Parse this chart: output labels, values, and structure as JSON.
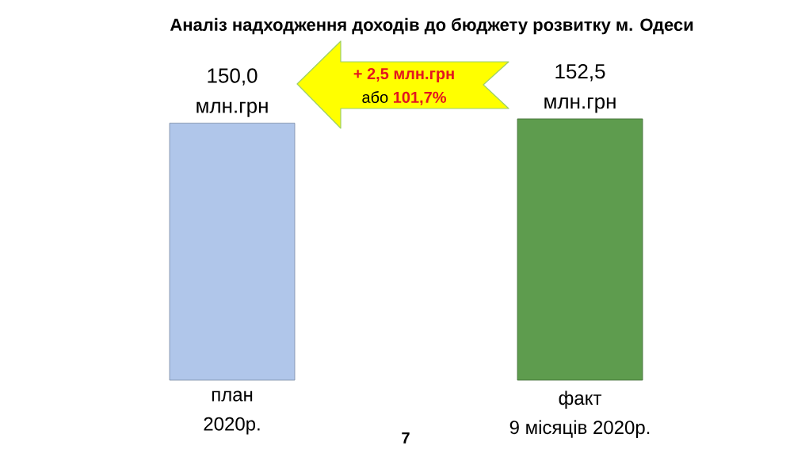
{
  "chart_data": {
    "type": "bar",
    "title": "Аналіз надходження доходів до бюджету розвитку м. Одеси",
    "categories": [
      "план 2020р.",
      "факт 9 місяців 2020р."
    ],
    "values": [
      150.0,
      152.5
    ],
    "value_labels": [
      "150,0 млн.грн",
      "152,5 млн.грн"
    ],
    "colors": [
      "#b0c6ea",
      "#5e9c4e"
    ],
    "annotations": [
      "+ 2,5 млн.грн",
      "або **101,7%**",
      "7"
    ]
  }
}
